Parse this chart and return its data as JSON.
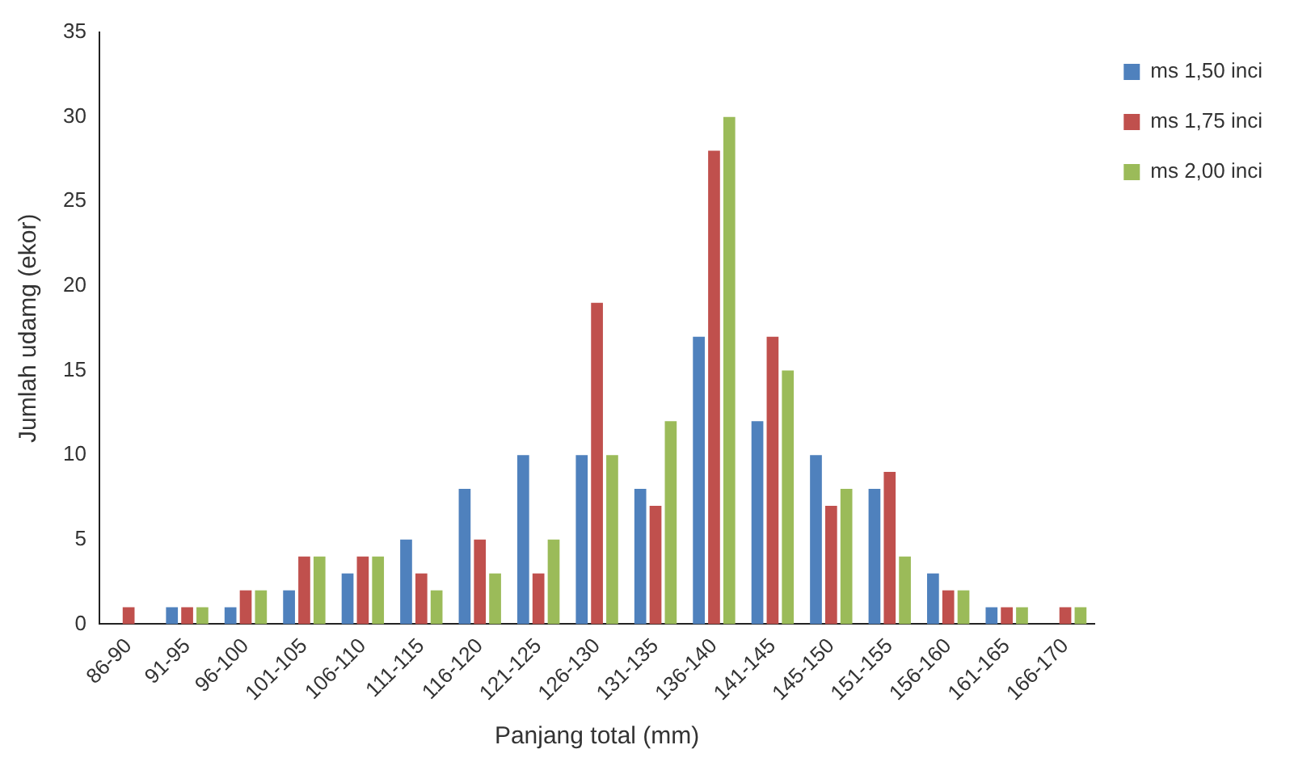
{
  "chart_data": {
    "type": "bar",
    "xlabel": "Panjang total (mm)",
    "ylabel": "Jumlah udamg (ekor)",
    "categories": [
      "86-90",
      "91-95",
      "96-100",
      "101-105",
      "106-110",
      "111-115",
      "116-120",
      "121-125",
      "126-130",
      "131-135",
      "136-140",
      "141-145",
      "145-150",
      "151-155",
      "156-160",
      "161-165",
      "166-170"
    ],
    "series": [
      {
        "name": "ms 1,50 inci",
        "color": "#4f81bd",
        "values": [
          0,
          1,
          1,
          2,
          3,
          5,
          8,
          10,
          10,
          8,
          17,
          12,
          10,
          8,
          3,
          1,
          0
        ]
      },
      {
        "name": "ms 1,75 inci",
        "color": "#c0504d",
        "values": [
          1,
          1,
          2,
          4,
          4,
          3,
          5,
          3,
          19,
          7,
          28,
          17,
          7,
          9,
          2,
          1,
          1
        ]
      },
      {
        "name": "ms 2,00 inci",
        "color": "#9bbb59",
        "values": [
          0,
          1,
          2,
          4,
          4,
          2,
          3,
          5,
          10,
          12,
          30,
          15,
          8,
          4,
          2,
          1,
          1
        ]
      }
    ],
    "ylim": [
      0,
      35
    ],
    "yticks": [
      0,
      5,
      10,
      15,
      20,
      25,
      30,
      35
    ],
    "grid": false,
    "legend": "top right"
  }
}
